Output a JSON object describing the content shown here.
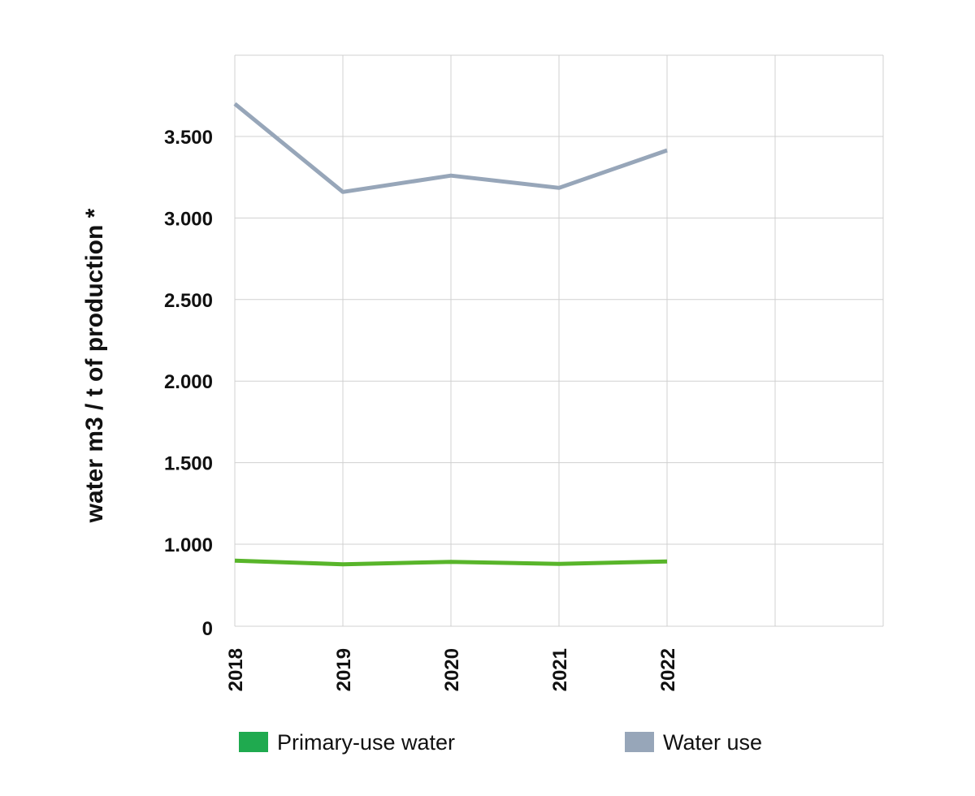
{
  "chart_data": {
    "type": "line",
    "title": "",
    "xlabel": "",
    "ylabel": "water m3 / t of production *",
    "categories": [
      "2018",
      "2019",
      "2020",
      "2021",
      "2022"
    ],
    "x_extra_slots": 1,
    "y_ticks": [
      {
        "value": 0,
        "label": "0"
      },
      {
        "value": 1000,
        "label": "1.000"
      },
      {
        "value": 1500,
        "label": "1.500"
      },
      {
        "value": 2000,
        "label": "2.000"
      },
      {
        "value": 2500,
        "label": "2.500"
      },
      {
        "value": 3000,
        "label": "3.000"
      },
      {
        "value": 3500,
        "label": "3.500"
      }
    ],
    "ylim": [
      0,
      3500
    ],
    "grid": true,
    "legend_position": "bottom",
    "series": [
      {
        "name": "Primary-use water",
        "key": "primary",
        "color": "#58b52a",
        "legend_color": "#1faa4f",
        "values": [
          800,
          755,
          785,
          760,
          790
        ]
      },
      {
        "name": "Water use",
        "key": "water",
        "color": "#97a6b9",
        "legend_color": "#97a6b9",
        "values": [
          3700,
          3160,
          3260,
          3185,
          3415
        ]
      }
    ]
  }
}
